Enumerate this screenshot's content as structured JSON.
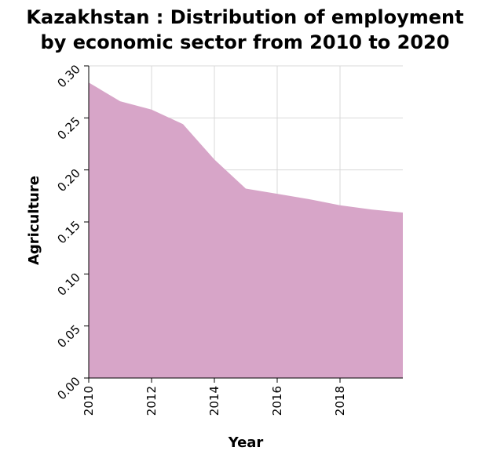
{
  "chart_data": {
    "type": "area",
    "title_lines": [
      "Kazakhstan : Distribution of employment",
      "by economic sector from 2010 to 2020"
    ],
    "xlabel": "Year",
    "ylabel": "Agriculture",
    "xlim": [
      2010,
      2020
    ],
    "ylim": [
      0,
      0.3
    ],
    "x_ticks": [
      2010,
      2012,
      2014,
      2016,
      2018
    ],
    "y_ticks": [
      "0.00",
      "0.05",
      "0.10",
      "0.15",
      "0.20",
      "0.25",
      "0.30"
    ],
    "grid": true,
    "series": [
      {
        "x": [
          2010,
          2011,
          2012,
          2013,
          2014,
          2015,
          2016,
          2017,
          2018,
          2019,
          2020
        ],
        "values": [
          0.284,
          0.266,
          0.258,
          0.244,
          0.21,
          0.182,
          0.177,
          0.172,
          0.166,
          0.162,
          0.159
        ],
        "color": "#d7a5c8"
      }
    ]
  }
}
